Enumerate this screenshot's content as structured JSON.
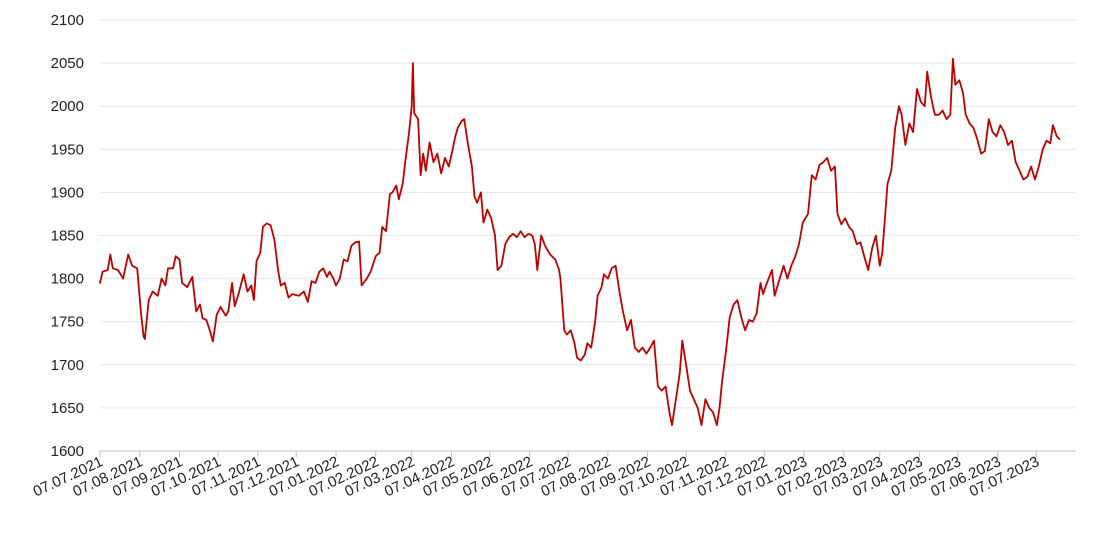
{
  "chart_data": {
    "type": "line",
    "title": "",
    "xlabel": "",
    "ylabel": "",
    "ylim": [
      1600,
      2100
    ],
    "yticks": [
      1600,
      1650,
      1700,
      1750,
      1800,
      1850,
      1900,
      1950,
      2000,
      2050,
      2100
    ],
    "xlim": [
      "07.07.2021",
      "07.08.2023"
    ],
    "xticks": [
      "07.07.2021",
      "07.08.2021",
      "07.09.2021",
      "07.10.2021",
      "07.11.2021",
      "07.12.2021",
      "07.01.2022",
      "07.02.2022",
      "07.03.2022",
      "07.04.2022",
      "07.05.2022",
      "07.06.2022",
      "07.07.2022",
      "07.08.2022",
      "07.09.2022",
      "07.10.2022",
      "07.11.2022",
      "07.12.2022",
      "07.01.2023",
      "07.02.2023",
      "07.03.2023",
      "07.04.2023",
      "07.05.2023",
      "07.06.2023",
      "07.07.2023"
    ],
    "grid": true,
    "line_color": "#c00000",
    "series": [
      {
        "points": [
          [
            "2021-07-07",
            1795
          ],
          [
            "2021-07-09",
            1808
          ],
          [
            "2021-07-13",
            1810
          ],
          [
            "2021-07-15",
            1828
          ],
          [
            "2021-07-17",
            1812
          ],
          [
            "2021-07-21",
            1810
          ],
          [
            "2021-07-25",
            1800
          ],
          [
            "2021-07-29",
            1828
          ],
          [
            "2021-08-01",
            1815
          ],
          [
            "2021-08-05",
            1812
          ],
          [
            "2021-08-08",
            1760
          ],
          [
            "2021-08-10",
            1733
          ],
          [
            "2021-08-11",
            1730
          ],
          [
            "2021-08-14",
            1775
          ],
          [
            "2021-08-17",
            1785
          ],
          [
            "2021-08-21",
            1780
          ],
          [
            "2021-08-24",
            1800
          ],
          [
            "2021-08-27",
            1792
          ],
          [
            "2021-08-29",
            1812
          ],
          [
            "2021-09-02",
            1812
          ],
          [
            "2021-09-04",
            1826
          ],
          [
            "2021-09-07",
            1822
          ],
          [
            "2021-09-09",
            1795
          ],
          [
            "2021-09-13",
            1790
          ],
          [
            "2021-09-17",
            1802
          ],
          [
            "2021-09-20",
            1762
          ],
          [
            "2021-09-23",
            1770
          ],
          [
            "2021-09-25",
            1754
          ],
          [
            "2021-09-28",
            1752
          ],
          [
            "2021-10-01",
            1738
          ],
          [
            "2021-10-03",
            1727
          ],
          [
            "2021-10-06",
            1758
          ],
          [
            "2021-10-09",
            1767
          ],
          [
            "2021-10-13",
            1757
          ],
          [
            "2021-10-15",
            1762
          ],
          [
            "2021-10-18",
            1795
          ],
          [
            "2021-10-20",
            1768
          ],
          [
            "2021-10-23",
            1782
          ],
          [
            "2021-10-27",
            1805
          ],
          [
            "2021-10-30",
            1785
          ],
          [
            "2021-11-02",
            1792
          ],
          [
            "2021-11-04",
            1775
          ],
          [
            "2021-11-06",
            1820
          ],
          [
            "2021-11-09",
            1830
          ],
          [
            "2021-11-11",
            1860
          ],
          [
            "2021-11-14",
            1864
          ],
          [
            "2021-11-17",
            1862
          ],
          [
            "2021-11-20",
            1845
          ],
          [
            "2021-11-23",
            1808
          ],
          [
            "2021-11-25",
            1792
          ],
          [
            "2021-11-28",
            1795
          ],
          [
            "2021-12-01",
            1778
          ],
          [
            "2021-12-04",
            1782
          ],
          [
            "2021-12-09",
            1780
          ],
          [
            "2021-12-13",
            1785
          ],
          [
            "2021-12-16",
            1773
          ],
          [
            "2021-12-19",
            1797
          ],
          [
            "2021-12-22",
            1795
          ],
          [
            "2021-12-25",
            1808
          ],
          [
            "2021-12-28",
            1812
          ],
          [
            "2021-12-31",
            1802
          ],
          [
            "2022-01-02",
            1808
          ],
          [
            "2022-01-05",
            1800
          ],
          [
            "2022-01-07",
            1792
          ],
          [
            "2022-01-10",
            1800
          ],
          [
            "2022-01-13",
            1822
          ],
          [
            "2022-01-16",
            1820
          ],
          [
            "2022-01-19",
            1838
          ],
          [
            "2022-01-22",
            1842
          ],
          [
            "2022-01-25",
            1843
          ],
          [
            "2022-01-27",
            1792
          ],
          [
            "2022-01-31",
            1800
          ],
          [
            "2022-02-03",
            1808
          ],
          [
            "2022-02-07",
            1826
          ],
          [
            "2022-02-10",
            1830
          ],
          [
            "2022-02-12",
            1860
          ],
          [
            "2022-02-15",
            1855
          ],
          [
            "2022-02-18",
            1898
          ],
          [
            "2022-02-20",
            1900
          ],
          [
            "2022-02-23",
            1908
          ],
          [
            "2022-02-25",
            1892
          ],
          [
            "2022-02-28",
            1910
          ],
          [
            "2022-03-02",
            1935
          ],
          [
            "2022-03-05",
            1970
          ],
          [
            "2022-03-07",
            2000
          ],
          [
            "2022-03-08",
            2050
          ],
          [
            "2022-03-09",
            1992
          ],
          [
            "2022-03-12",
            1985
          ],
          [
            "2022-03-14",
            1920
          ],
          [
            "2022-03-16",
            1945
          ],
          [
            "2022-03-18",
            1925
          ],
          [
            "2022-03-21",
            1958
          ],
          [
            "2022-03-24",
            1935
          ],
          [
            "2022-03-27",
            1945
          ],
          [
            "2022-03-30",
            1922
          ],
          [
            "2022-04-02",
            1940
          ],
          [
            "2022-04-05",
            1930
          ],
          [
            "2022-04-08",
            1950
          ],
          [
            "2022-04-10",
            1965
          ],
          [
            "2022-04-12",
            1975
          ],
          [
            "2022-04-15",
            1983
          ],
          [
            "2022-04-17",
            1985
          ],
          [
            "2022-04-20",
            1955
          ],
          [
            "2022-04-23",
            1930
          ],
          [
            "2022-04-25",
            1895
          ],
          [
            "2022-04-27",
            1888
          ],
          [
            "2022-04-30",
            1900
          ],
          [
            "2022-05-02",
            1865
          ],
          [
            "2022-05-05",
            1880
          ],
          [
            "2022-05-08",
            1870
          ],
          [
            "2022-05-11",
            1850
          ],
          [
            "2022-05-13",
            1810
          ],
          [
            "2022-05-16",
            1815
          ],
          [
            "2022-05-19",
            1840
          ],
          [
            "2022-05-22",
            1848
          ],
          [
            "2022-05-25",
            1852
          ],
          [
            "2022-05-28",
            1848
          ],
          [
            "2022-05-31",
            1855
          ],
          [
            "2022-06-03",
            1848
          ],
          [
            "2022-06-06",
            1852
          ],
          [
            "2022-06-09",
            1850
          ],
          [
            "2022-06-11",
            1840
          ],
          [
            "2022-06-13",
            1810
          ],
          [
            "2022-06-16",
            1850
          ],
          [
            "2022-06-19",
            1838
          ],
          [
            "2022-06-23",
            1828
          ],
          [
            "2022-06-27",
            1822
          ],
          [
            "2022-06-30",
            1810
          ],
          [
            "2022-07-01",
            1800
          ],
          [
            "2022-07-04",
            1740
          ],
          [
            "2022-07-06",
            1735
          ],
          [
            "2022-07-09",
            1740
          ],
          [
            "2022-07-12",
            1725
          ],
          [
            "2022-07-14",
            1708
          ],
          [
            "2022-07-17",
            1705
          ],
          [
            "2022-07-20",
            1712
          ],
          [
            "2022-07-22",
            1725
          ],
          [
            "2022-07-25",
            1720
          ],
          [
            "2022-07-28",
            1750
          ],
          [
            "2022-07-30",
            1780
          ],
          [
            "2022-08-02",
            1790
          ],
          [
            "2022-08-04",
            1805
          ],
          [
            "2022-08-07",
            1800
          ],
          [
            "2022-08-10",
            1812
          ],
          [
            "2022-08-13",
            1815
          ],
          [
            "2022-08-16",
            1785
          ],
          [
            "2022-08-19",
            1760
          ],
          [
            "2022-08-22",
            1740
          ],
          [
            "2022-08-25",
            1752
          ],
          [
            "2022-08-28",
            1720
          ],
          [
            "2022-08-31",
            1715
          ],
          [
            "2022-09-03",
            1720
          ],
          [
            "2022-09-06",
            1713
          ],
          [
            "2022-09-09",
            1720
          ],
          [
            "2022-09-12",
            1728
          ],
          [
            "2022-09-15",
            1675
          ],
          [
            "2022-09-18",
            1670
          ],
          [
            "2022-09-21",
            1675
          ],
          [
            "2022-09-24",
            1645
          ],
          [
            "2022-09-26",
            1630
          ],
          [
            "2022-09-29",
            1660
          ],
          [
            "2022-10-02",
            1690
          ],
          [
            "2022-10-04",
            1728
          ],
          [
            "2022-10-07",
            1700
          ],
          [
            "2022-10-10",
            1670
          ],
          [
            "2022-10-13",
            1660
          ],
          [
            "2022-10-16",
            1650
          ],
          [
            "2022-10-19",
            1630
          ],
          [
            "2022-10-22",
            1660
          ],
          [
            "2022-10-25",
            1650
          ],
          [
            "2022-10-28",
            1645
          ],
          [
            "2022-10-31",
            1630
          ],
          [
            "2022-11-02",
            1650
          ],
          [
            "2022-11-04",
            1680
          ],
          [
            "2022-11-07",
            1715
          ],
          [
            "2022-11-10",
            1755
          ],
          [
            "2022-11-13",
            1770
          ],
          [
            "2022-11-16",
            1775
          ],
          [
            "2022-11-19",
            1755
          ],
          [
            "2022-11-22",
            1740
          ],
          [
            "2022-11-25",
            1752
          ],
          [
            "2022-11-28",
            1750
          ],
          [
            "2022-12-01",
            1760
          ],
          [
            "2022-12-04",
            1795
          ],
          [
            "2022-12-06",
            1782
          ],
          [
            "2022-12-09",
            1795
          ],
          [
            "2022-12-13",
            1810
          ],
          [
            "2022-12-15",
            1780
          ],
          [
            "2022-12-19",
            1800
          ],
          [
            "2022-12-22",
            1815
          ],
          [
            "2022-12-25",
            1800
          ],
          [
            "2022-12-28",
            1815
          ],
          [
            "2022-12-31",
            1825
          ],
          [
            "2023-01-03",
            1840
          ],
          [
            "2023-01-06",
            1865
          ],
          [
            "2023-01-10",
            1875
          ],
          [
            "2023-01-13",
            1920
          ],
          [
            "2023-01-16",
            1915
          ],
          [
            "2023-01-19",
            1932
          ],
          [
            "2023-01-22",
            1935
          ],
          [
            "2023-01-25",
            1940
          ],
          [
            "2023-01-28",
            1925
          ],
          [
            "2023-01-31",
            1930
          ],
          [
            "2023-02-02",
            1875
          ],
          [
            "2023-02-05",
            1863
          ],
          [
            "2023-02-08",
            1870
          ],
          [
            "2023-02-11",
            1860
          ],
          [
            "2023-02-14",
            1855
          ],
          [
            "2023-02-17",
            1840
          ],
          [
            "2023-02-20",
            1842
          ],
          [
            "2023-02-23",
            1825
          ],
          [
            "2023-02-26",
            1810
          ],
          [
            "2023-03-01",
            1835
          ],
          [
            "2023-03-04",
            1850
          ],
          [
            "2023-03-07",
            1815
          ],
          [
            "2023-03-09",
            1830
          ],
          [
            "2023-03-11",
            1870
          ],
          [
            "2023-03-13",
            1910
          ],
          [
            "2023-03-16",
            1925
          ],
          [
            "2023-03-19",
            1975
          ],
          [
            "2023-03-22",
            2000
          ],
          [
            "2023-03-24",
            1990
          ],
          [
            "2023-03-27",
            1955
          ],
          [
            "2023-03-30",
            1980
          ],
          [
            "2023-04-02",
            1970
          ],
          [
            "2023-04-05",
            2020
          ],
          [
            "2023-04-08",
            2005
          ],
          [
            "2023-04-11",
            2000
          ],
          [
            "2023-04-13",
            2040
          ],
          [
            "2023-04-16",
            2010
          ],
          [
            "2023-04-19",
            1990
          ],
          [
            "2023-04-22",
            1990
          ],
          [
            "2023-04-25",
            1995
          ],
          [
            "2023-04-28",
            1985
          ],
          [
            "2023-05-01",
            1990
          ],
          [
            "2023-05-03",
            2055
          ],
          [
            "2023-05-05",
            2025
          ],
          [
            "2023-05-08",
            2030
          ],
          [
            "2023-05-11",
            2015
          ],
          [
            "2023-05-13",
            1990
          ],
          [
            "2023-05-16",
            1980
          ],
          [
            "2023-05-19",
            1975
          ],
          [
            "2023-05-22",
            1962
          ],
          [
            "2023-05-25",
            1945
          ],
          [
            "2023-05-28",
            1948
          ],
          [
            "2023-05-31",
            1985
          ],
          [
            "2023-06-03",
            1970
          ],
          [
            "2023-06-06",
            1965
          ],
          [
            "2023-06-09",
            1978
          ],
          [
            "2023-06-12",
            1970
          ],
          [
            "2023-06-15",
            1955
          ],
          [
            "2023-06-18",
            1960
          ],
          [
            "2023-06-21",
            1935
          ],
          [
            "2023-06-24",
            1925
          ],
          [
            "2023-06-27",
            1915
          ],
          [
            "2023-06-30",
            1918
          ],
          [
            "2023-07-03",
            1930
          ],
          [
            "2023-07-06",
            1915
          ],
          [
            "2023-07-09",
            1930
          ],
          [
            "2023-07-12",
            1950
          ],
          [
            "2023-07-15",
            1960
          ],
          [
            "2023-07-18",
            1957
          ],
          [
            "2023-07-20",
            1978
          ],
          [
            "2023-07-23",
            1965
          ],
          [
            "2023-07-25",
            1962
          ]
        ]
      }
    ]
  }
}
